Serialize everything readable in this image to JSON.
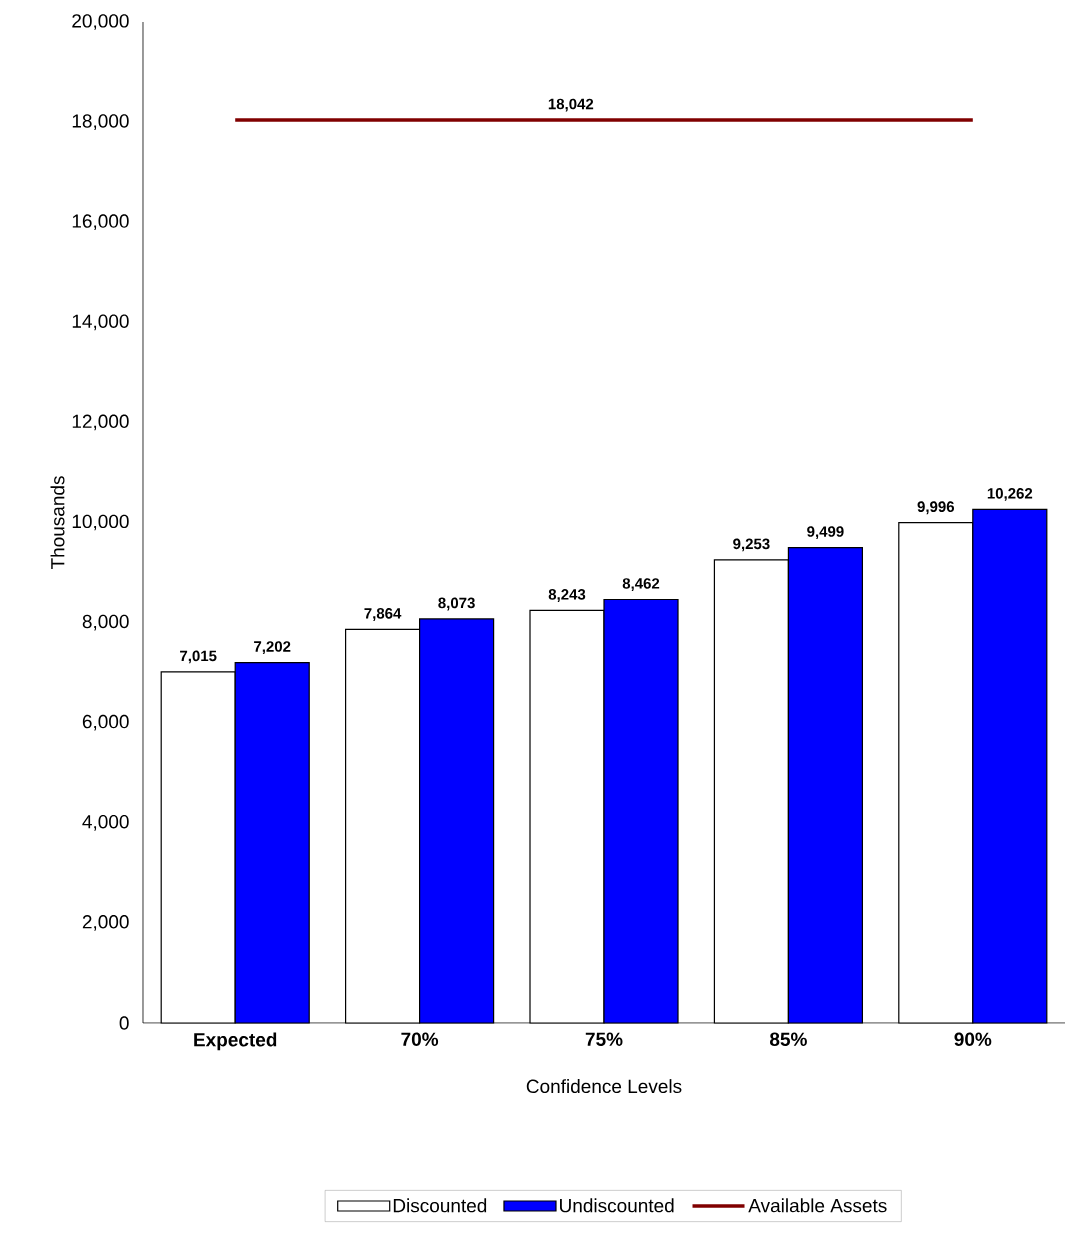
{
  "chart_data": {
    "type": "bar",
    "xlabel": "Confidence Levels",
    "ylabel": "Thousands",
    "categories": [
      "Expected",
      "70%",
      "75%",
      "85%",
      "90%"
    ],
    "series": [
      {
        "name": "Discounted",
        "color": "#ffffff",
        "values": [
          7015,
          7864,
          8243,
          9253,
          9996
        ],
        "value_labels": [
          "7,015",
          "7,864",
          "8,243",
          "9,253",
          "9,996"
        ]
      },
      {
        "name": "Undiscounted",
        "color": "#0000ff",
        "values": [
          7202,
          8073,
          8462,
          9499,
          10262
        ],
        "value_labels": [
          "7,202",
          "8,073",
          "8,462",
          "9,499",
          "10,262"
        ]
      },
      {
        "name": "Available Assets",
        "type": "line",
        "color": "#800000",
        "values": [
          18042,
          18042,
          18042,
          18042,
          18042
        ],
        "value_labels": [
          null,
          null,
          "18,042",
          null,
          null
        ]
      }
    ],
    "ylim": [
      0,
      20000
    ],
    "yticks": [
      {
        "value": 0,
        "label": "0"
      },
      {
        "value": 2000,
        "label": "2,000"
      },
      {
        "value": 4000,
        "label": "4,000"
      },
      {
        "value": 6000,
        "label": "6,000"
      },
      {
        "value": 8000,
        "label": "8,000"
      },
      {
        "value": 10000,
        "label": "10,000"
      },
      {
        "value": 12000,
        "label": "12,000"
      },
      {
        "value": 14000,
        "label": "14,000"
      },
      {
        "value": 16000,
        "label": "16,000"
      },
      {
        "value": 18000,
        "label": "18,000"
      },
      {
        "value": 20000,
        "label": "20,000"
      }
    ],
    "grid": false,
    "legend": "bottom",
    "marker": "none"
  }
}
